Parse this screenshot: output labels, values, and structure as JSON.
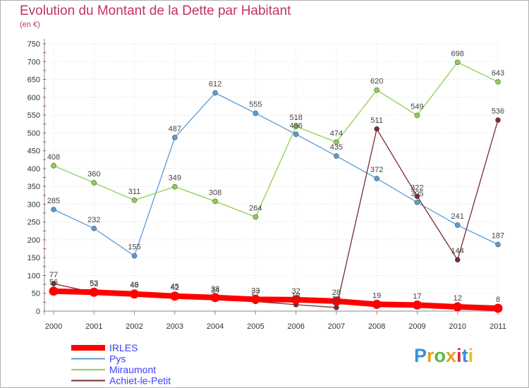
{
  "header": {
    "title": "Evolution du Montant de la Dette par Habitant",
    "unit": "(en €)"
  },
  "logo": {
    "text": "Proxiti",
    "colors": [
      "#3a8fd8",
      "#e8a020",
      "#5ab840",
      "#e8a020",
      "#d8303a",
      "#3a8fd8",
      "#e8c020"
    ]
  },
  "chart_data": {
    "type": "line",
    "title": "Evolution du Montant de la Dette par Habitant",
    "ylabel": "(en €)",
    "xlabel": "",
    "x": [
      "2000",
      "2001",
      "2002",
      "2003",
      "2004",
      "2005",
      "2006",
      "2007",
      "2008",
      "2009",
      "2010",
      "2011"
    ],
    "ylim": [
      0,
      750
    ],
    "yticks": [
      0,
      50,
      100,
      150,
      200,
      250,
      300,
      350,
      400,
      450,
      500,
      550,
      600,
      650,
      700,
      750
    ],
    "grid": true,
    "legend": "bottom-left",
    "series": [
      {
        "name": "IRLES",
        "color": "#ff0000",
        "values": [
          56,
          53,
          48,
          42,
          38,
          33,
          32,
          28,
          19,
          17,
          12,
          8
        ],
        "labels": [
          "56",
          "53",
          "48",
          "42",
          "38",
          "33",
          "32",
          "28",
          "19",
          "17",
          "12",
          "8"
        ]
      },
      {
        "name": "Pys",
        "color": "#5b9bd5",
        "values": [
          285,
          232,
          155,
          487,
          612,
          555,
          496,
          435,
          372,
          305,
          241,
          187
        ],
        "labels": [
          "285",
          "232",
          "155",
          "487",
          "612",
          "555",
          "496",
          "435",
          "372",
          "305",
          "241",
          "187"
        ]
      },
      {
        "name": "Miraumont",
        "color": "#8ed04c",
        "values": [
          408,
          360,
          311,
          349,
          308,
          264,
          518,
          474,
          620,
          549,
          698,
          643
        ],
        "labels": [
          "408",
          "360",
          "311",
          "349",
          "308",
          "264",
          "518",
          "474",
          "620",
          "549",
          "698",
          "643"
        ]
      },
      {
        "name": "Achiet-le-Petit",
        "color": "#7a2a30",
        "values": [
          77,
          52,
          49,
          45,
          34,
          27,
          18,
          10,
          511,
          322,
          144,
          536
        ],
        "labels": [
          "77",
          "52",
          "49",
          "45",
          "34",
          "27",
          "18",
          "10",
          "511",
          "322",
          "144",
          "536"
        ]
      }
    ]
  }
}
